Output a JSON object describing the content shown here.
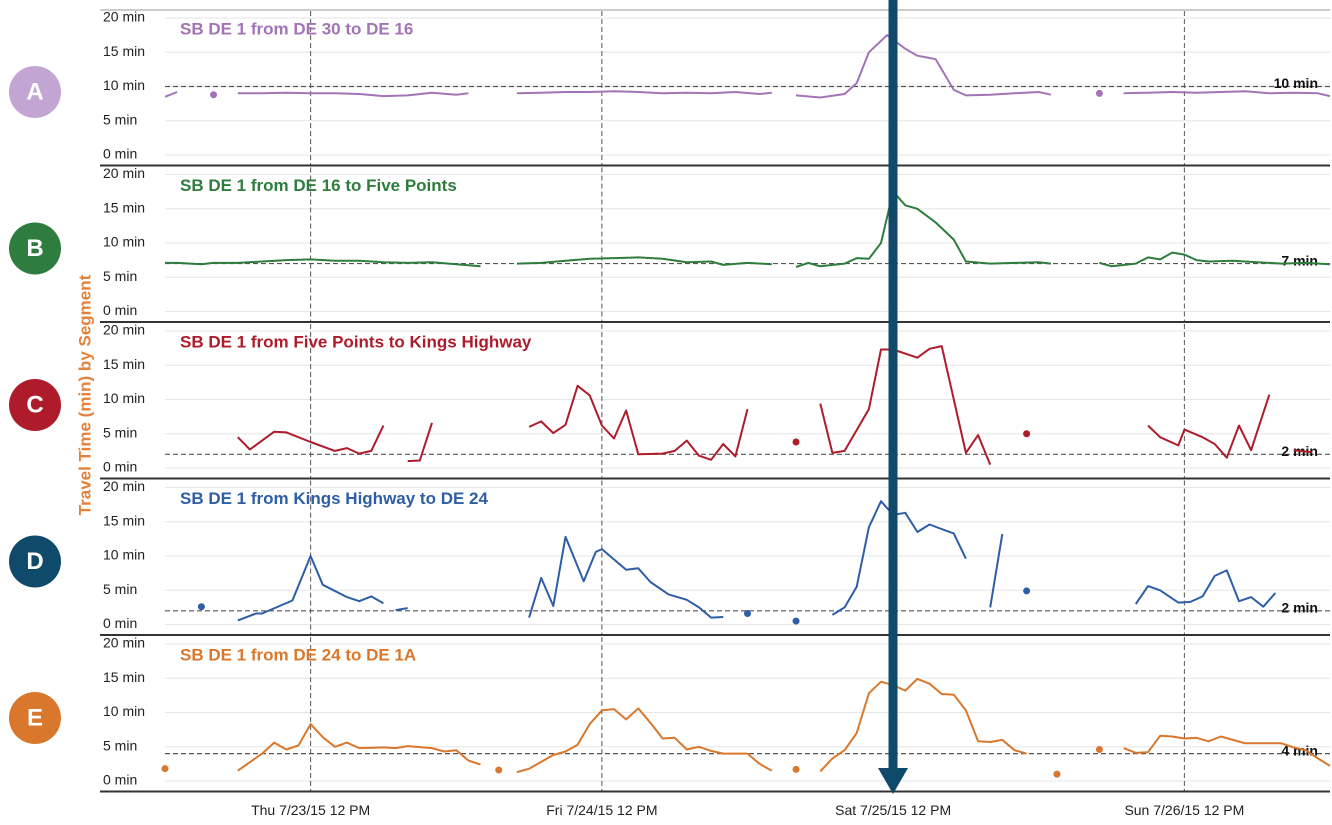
{
  "chart_data": {
    "type": "line",
    "y_label": "Travel Time (min) by Segment",
    "xlim": [
      0,
      96
    ],
    "xticks": [
      {
        "value": 12,
        "label": "Thu 7/23/15 12 PM"
      },
      {
        "value": 36,
        "label": "Fri 7/24/15 12 PM"
      },
      {
        "value": 60,
        "label": "Sat 7/25/15 12 PM"
      },
      {
        "value": 84,
        "label": "Sun 7/26/15 12 PM"
      }
    ],
    "ylim": [
      0,
      20
    ],
    "yticks": [
      {
        "value": 0,
        "label": "0 min"
      },
      {
        "value": 5,
        "label": "5 min"
      },
      {
        "value": 10,
        "label": "10 min"
      },
      {
        "value": 15,
        "label": "15 min"
      },
      {
        "value": 20,
        "label": "20 min"
      }
    ],
    "grid": true,
    "series": [
      {
        "name": "SB DE 1 from DE 30 to DE 16",
        "color": "#a374b5",
        "badge": {
          "label": "A",
          "color": "#c3a5d3"
        },
        "reference": {
          "value": 10,
          "label": "10 min"
        },
        "x": [
          0,
          1,
          2,
          4,
          5,
          6,
          8,
          10,
          12,
          14,
          16,
          18,
          20,
          22,
          24,
          25,
          27,
          29,
          31,
          33,
          35,
          37,
          39,
          41,
          43,
          45,
          47,
          49,
          50,
          51,
          52,
          54,
          56,
          57,
          58,
          59.5,
          61,
          62,
          63.5,
          65,
          66,
          68,
          70,
          72,
          73,
          75,
          77,
          78,
          79,
          81,
          83,
          85,
          87,
          89,
          91,
          93,
          95,
          96
        ],
        "values": [
          8.5,
          9.2,
          null,
          8.8,
          null,
          9,
          9,
          9.1,
          9,
          9,
          8.9,
          8.6,
          8.7,
          9.1,
          8.8,
          9.0,
          null,
          9,
          9.1,
          9.2,
          9.2,
          9.3,
          9.2,
          9.0,
          9.1,
          9.0,
          9.2,
          8.9,
          9.1,
          null,
          8.7,
          8.4,
          8.9,
          10.5,
          15,
          17.5,
          15.5,
          14.5,
          14,
          9.5,
          8.7,
          8.8,
          9.0,
          9.2,
          8.8,
          null,
          9,
          null,
          9,
          9.1,
          9.2,
          9.1,
          9.2,
          9.3,
          9.0,
          9.1,
          9.0,
          8.6
        ]
      },
      {
        "name": "SB DE 1 from DE 16 to Five Points",
        "color": "#2e7d3e",
        "badge": {
          "label": "B",
          "color": "#2e7d3e"
        },
        "reference": {
          "value": 7,
          "label": "7 min"
        },
        "x": [
          0,
          1,
          3,
          4,
          6,
          8,
          10,
          12,
          14,
          16,
          18,
          20,
          22,
          24,
          26,
          27,
          29,
          31,
          33,
          35,
          37,
          39,
          41,
          43,
          45,
          46,
          48,
          50,
          51,
          52,
          53,
          54,
          56,
          57,
          58,
          59,
          60,
          61,
          62,
          63.5,
          65,
          66,
          68,
          70,
          72,
          73,
          75,
          77,
          78,
          80,
          81,
          82,
          83,
          84,
          85,
          86,
          88,
          90,
          92,
          94,
          96
        ],
        "values": [
          7.1,
          7.1,
          6.9,
          7.1,
          7.1,
          7.3,
          7.5,
          7.6,
          7.4,
          7.4,
          7.2,
          7.1,
          7.2,
          6.9,
          6.6,
          null,
          7.0,
          7.1,
          7.4,
          7.7,
          7.8,
          7.9,
          7.7,
          7.2,
          7.3,
          6.8,
          7.1,
          6.9,
          null,
          6.5,
          7.1,
          6.6,
          7.0,
          7.8,
          7.7,
          10,
          17.5,
          15.5,
          15,
          13,
          10.5,
          7.3,
          7.0,
          7.1,
          7.2,
          7.0,
          null,
          7.1,
          6.6,
          7.0,
          7.9,
          7.6,
          8.6,
          8.3,
          7.5,
          7.3,
          7.4,
          7.2,
          7.0,
          7.1,
          6.9
        ]
      },
      {
        "name": "SB DE 1 from Five Points to Kings Highway",
        "color": "#ae1c2c",
        "badge": {
          "label": "C",
          "color": "#ae1c2c"
        },
        "reference": {
          "value": 2,
          "label": "2 min"
        },
        "x": [
          6,
          7,
          9,
          10,
          12,
          14,
          15,
          16,
          17,
          18,
          19,
          20,
          21,
          22,
          26,
          30,
          31,
          32,
          33,
          34,
          35,
          36,
          37,
          38,
          39,
          41,
          42,
          43,
          44,
          45,
          46,
          47,
          48,
          50,
          52,
          53,
          54,
          55,
          56,
          58,
          59,
          60,
          62,
          63,
          64,
          66,
          67,
          68,
          70,
          71,
          75,
          81,
          82,
          83.5,
          84,
          85.5,
          86.5,
          87.5,
          88.5,
          89.5,
          91,
          92,
          93,
          94.5
        ],
        "values": [
          4.5,
          2.7,
          5.3,
          5.2,
          3.8,
          2.5,
          2.9,
          2.1,
          2.5,
          6.2,
          null,
          1.0,
          1.1,
          6.6,
          null,
          6.0,
          6.8,
          5.1,
          6.3,
          12,
          10.6,
          6.2,
          4.3,
          8.4,
          2.0,
          2.1,
          2.5,
          4.0,
          1.8,
          1.2,
          3.5,
          1.7,
          8.6,
          null,
          3.8,
          null,
          9.4,
          2.2,
          2.5,
          8.6,
          17.3,
          17.3,
          16.1,
          17.4,
          17.8,
          2.2,
          4.8,
          0.5,
          null,
          5.0,
          null,
          6.2,
          4.5,
          3.3,
          5.6,
          4.5,
          3.5,
          1.5,
          6.2,
          2.6,
          10.7,
          null,
          2.6,
          2.3
        ]
      },
      {
        "name": "SB DE 1 from Kings Highway to DE 24",
        "color": "#2d5ea6",
        "badge": {
          "label": "D",
          "color": "#0f4a6b"
        },
        "reference": {
          "value": 2,
          "label": "2 min"
        },
        "x": [
          3,
          4,
          6,
          7.5,
          8,
          10.5,
          12,
          13,
          15,
          16,
          17,
          18,
          18.5,
          19,
          20,
          25,
          30,
          31,
          32,
          33,
          34.5,
          35.5,
          36,
          38,
          39,
          40,
          41.5,
          43,
          44,
          45,
          46,
          47,
          48,
          50,
          52,
          53,
          55,
          56,
          57,
          58,
          59,
          60,
          61,
          62,
          63,
          64.5,
          65,
          66,
          67,
          68,
          69,
          70,
          71,
          75,
          80,
          81,
          82,
          83.5,
          84.5,
          85.5,
          86.5,
          87.5,
          88.5,
          89.5,
          90.5,
          91.5
        ],
        "values": [
          2.6,
          null,
          0.6,
          1.6,
          1.6,
          3.5,
          10.0,
          5.8,
          4.0,
          3.4,
          4.1,
          3.1,
          null,
          2.1,
          2.4,
          null,
          1.0,
          6.8,
          2.7,
          12.8,
          6.3,
          10.6,
          11.0,
          8.0,
          8.2,
          6.2,
          4.4,
          3.6,
          2.5,
          1.0,
          1.1,
          null,
          1.6,
          null,
          0.5,
          null,
          1.4,
          2.5,
          5.5,
          14.2,
          18,
          16,
          16.3,
          13.5,
          14.6,
          13.6,
          13.3,
          9.6,
          null,
          2.5,
          13.2,
          null,
          4.9,
          null,
          3.0,
          5.6,
          5.0,
          3.2,
          3.3,
          4.1,
          7.1,
          7.9,
          3.4,
          4.0,
          2.6,
          4.6
        ]
      },
      {
        "name": "SB DE 1 from DE 24 to DE 1A",
        "color": "#d9782d",
        "badge": {
          "label": "E",
          "color": "#d9782d"
        },
        "reference": {
          "value": 4,
          "label": "4 min"
        },
        "x": [
          0,
          1,
          6,
          8,
          9,
          10,
          11,
          12,
          13,
          14,
          15,
          16,
          18,
          19,
          20,
          22,
          23,
          24,
          25,
          26,
          27,
          27.5,
          28,
          29,
          30,
          32,
          33,
          34,
          35,
          36,
          37,
          38,
          39,
          40,
          41,
          42,
          43,
          44,
          45,
          46,
          48,
          49,
          50,
          51,
          52,
          53,
          54,
          55,
          56,
          57,
          58,
          59,
          60,
          61,
          62,
          63,
          64,
          65,
          66,
          67,
          68,
          69,
          70,
          71,
          72,
          73.5,
          75,
          77,
          78,
          79,
          80,
          81,
          82,
          83,
          84,
          85,
          86,
          87,
          88,
          89,
          90,
          91,
          92,
          93,
          94,
          95,
          96
        ],
        "values": [
          1.8,
          null,
          1.5,
          4,
          5.6,
          4.6,
          5.2,
          8.3,
          6.4,
          5.0,
          5.6,
          4.8,
          4.9,
          4.8,
          5.1,
          4.8,
          4.3,
          4.5,
          3.0,
          2.4,
          null,
          1.6,
          null,
          1.3,
          1.8,
          3.8,
          4.3,
          5.3,
          8.3,
          10.3,
          10.5,
          9.0,
          10.6,
          8.5,
          6.2,
          6.3,
          4.6,
          5.0,
          4.4,
          4.0,
          4.0,
          2.5,
          1.5,
          null,
          1.7,
          null,
          1.4,
          3.3,
          4.5,
          7,
          12.8,
          14.5,
          14.0,
          13.2,
          14.9,
          14.2,
          12.7,
          12.6,
          10.3,
          5.8,
          5.7,
          6.0,
          4.5,
          4.0,
          null,
          1.0,
          null,
          4.6,
          null,
          4.8,
          4.1,
          4.2,
          6.6,
          6.5,
          6.2,
          6.3,
          5.8,
          6.5,
          6.0,
          5.5,
          5.5,
          5.5,
          5.5,
          4.9,
          4.5,
          3.3,
          2.2
        ]
      }
    ]
  }
}
